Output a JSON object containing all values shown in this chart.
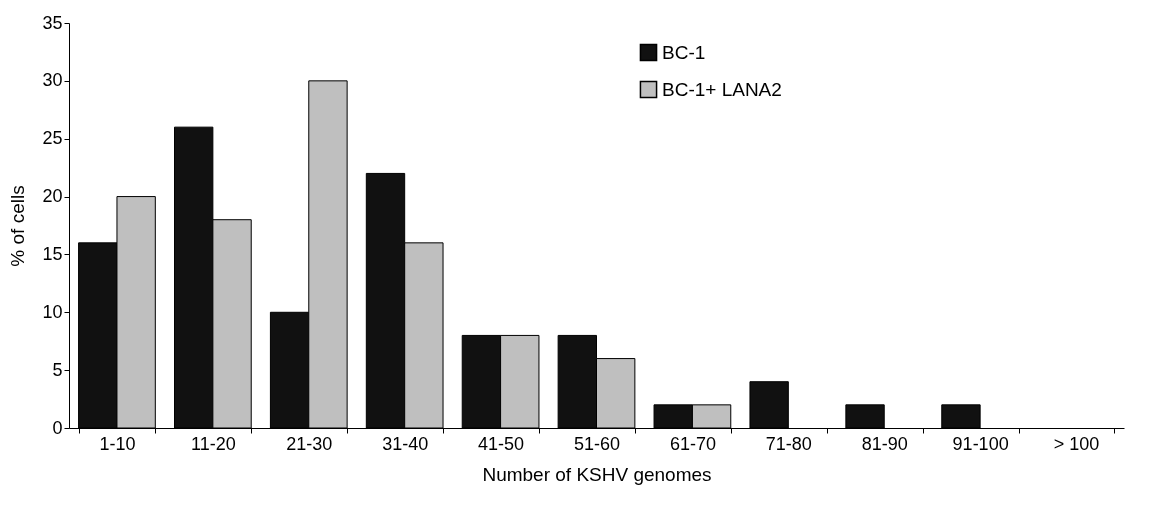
{
  "chart_data": {
    "type": "bar",
    "xlabel": "Number of KSHV genomes",
    "ylabel": "% of cells",
    "categories": [
      "1-10",
      "11-20",
      "21-30",
      "31-40",
      "41-50",
      "51-60",
      "61-70",
      "71-80",
      "81-90",
      "91-100",
      "> 100"
    ],
    "series": [
      {
        "name": "BC-1",
        "color": "#111111",
        "values": [
          16,
          26,
          10,
          22,
          8,
          8,
          2,
          4,
          2,
          2,
          null
        ]
      },
      {
        "name": "BC-1+ LANA2",
        "color": "#bfbfbf",
        "values": [
          20,
          18,
          30,
          16,
          8,
          6,
          2,
          null,
          null,
          null,
          null
        ]
      }
    ],
    "ylim": [
      0,
      35
    ],
    "yticks": [
      0,
      5,
      10,
      15,
      20,
      25,
      30,
      35
    ],
    "grid": false,
    "legend": "top right"
  }
}
